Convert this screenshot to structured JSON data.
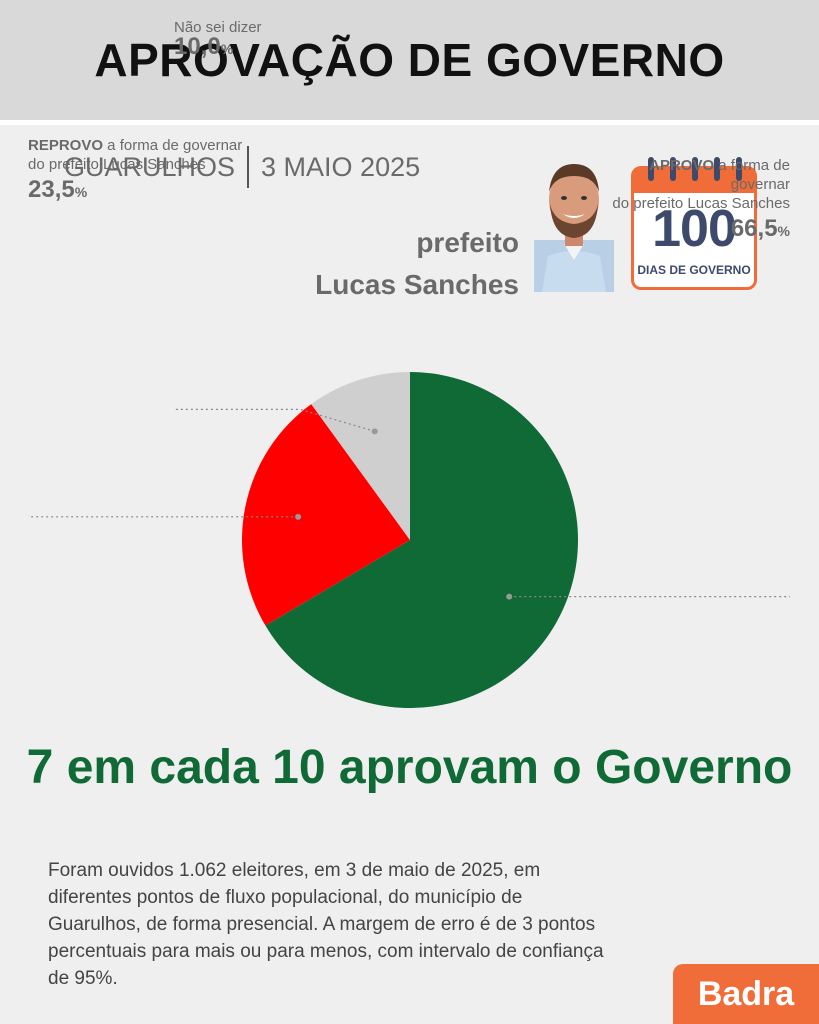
{
  "header": {
    "title": "APROVAÇÃO DE GOVERNO"
  },
  "subtitle": {
    "city": "GUARULHOS",
    "date": "3 MAIO 2025"
  },
  "mayor": {
    "prefix": "prefeito",
    "name": "Lucas Sanches"
  },
  "calendar": {
    "number": "100",
    "caption": "DIAS DE GOVERNO",
    "icon": "calendar-icon"
  },
  "chart_data": {
    "type": "pie",
    "slices": [
      {
        "label_strong": "APROVO",
        "label_rest": " a forma de governar",
        "label_line2": "do prefeito Lucas Sanches",
        "value": 66.5,
        "display": "66,5",
        "unit": "%",
        "color": "#0f6a36"
      },
      {
        "label_strong": "REPROVO",
        "label_rest": " a forma de governar",
        "label_line2": "do prefeito Lucas Sanches",
        "value": 23.5,
        "display": "23,5",
        "unit": "%",
        "color": "#ff0000"
      },
      {
        "label_strong": "",
        "label_rest": "Não sei dizer",
        "label_line2": "",
        "value": 10.0,
        "display": "10,0",
        "unit": "%",
        "color": "#cfcfcf"
      }
    ]
  },
  "headline": "7 em cada 10 aprovam o Governo",
  "note": "Foram ouvidos 1.062 eleitores, em 3 de maio de 2025, em diferentes pontos de fluxo populacional, do município de Guarulhos, de forma presencial. A margem de erro é de 3 pontos percentuais para mais ou para menos, com intervalo de confiança de 95%.",
  "brand": "Badra"
}
